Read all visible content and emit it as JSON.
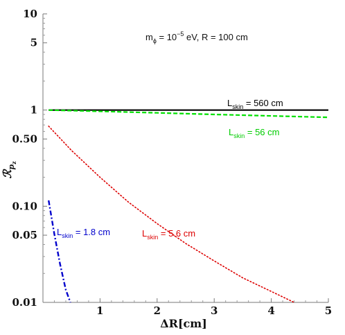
{
  "chart_data": {
    "type": "line",
    "title": "m_ϕ = 10^−5 eV, R = 100 cm",
    "title_parts": {
      "m": "m",
      "phi": "ϕ",
      "eq": " = 10",
      "exp": "−5",
      "rest": " eV, R = 100 cm"
    },
    "xlabel": "ΔR[cm]",
    "ylabel": {
      "main": "ℛ",
      "sub": "p",
      "subsub": "z"
    },
    "x_scale": "linear",
    "y_scale": "log",
    "xlim": [
      0,
      5
    ],
    "ylim": [
      0.01,
      10
    ],
    "x_ticks": [
      {
        "value": 1,
        "label": "1"
      },
      {
        "value": 2,
        "label": "2"
      },
      {
        "value": 3,
        "label": "3"
      },
      {
        "value": 4,
        "label": "4"
      },
      {
        "value": 5,
        "label": "5"
      }
    ],
    "y_ticks": [
      {
        "value": 0.01,
        "label": "0.01"
      },
      {
        "value": 0.05,
        "label": "0.05"
      },
      {
        "value": 0.1,
        "label": "0.10"
      },
      {
        "value": 0.5,
        "label": "0.50"
      },
      {
        "value": 1,
        "label": "1"
      },
      {
        "value": 5,
        "label": "5"
      },
      {
        "value": 10,
        "label": "10"
      }
    ],
    "grid": false,
    "series": [
      {
        "label_main": "L",
        "label_sub": "skin",
        "label_rest": " = 560 cm",
        "color": "#000000",
        "style": "solid",
        "x": [
          0.1,
          5.0
        ],
        "y": [
          1.0,
          1.0
        ]
      },
      {
        "label_main": "L",
        "label_sub": "skin",
        "label_rest": " = 56 cm",
        "color": "#00e000",
        "style": "dashed",
        "x": [
          0.1,
          1.0,
          2.0,
          3.0,
          4.0,
          5.0
        ],
        "y": [
          1.0,
          0.97,
          0.935,
          0.9,
          0.87,
          0.84
        ]
      },
      {
        "label_main": "L",
        "label_sub": "skin",
        "label_rest": " = 5.6 cm",
        "color": "#dd0000",
        "style": "dotted",
        "x": [
          0.1,
          0.5,
          1.0,
          1.5,
          2.0,
          2.5,
          3.0,
          3.5,
          4.0,
          4.4
        ],
        "y": [
          0.68,
          0.38,
          0.2,
          0.11,
          0.066,
          0.041,
          0.027,
          0.018,
          0.013,
          0.01
        ]
      },
      {
        "label_main": "L",
        "label_sub": "skin",
        "label_rest": " = 1.8 cm",
        "color": "#0000cc",
        "style": "dashdot",
        "x": [
          0.1,
          0.2,
          0.3,
          0.4,
          0.48
        ],
        "y": [
          0.115,
          0.051,
          0.025,
          0.0135,
          0.01
        ]
      }
    ]
  }
}
